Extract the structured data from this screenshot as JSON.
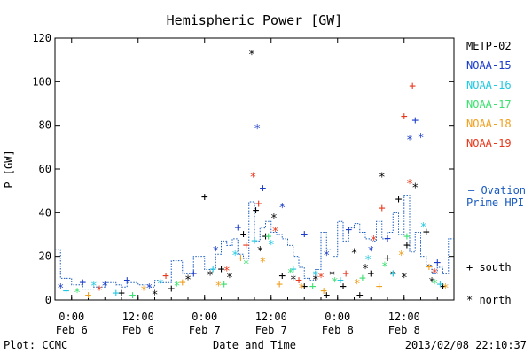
{
  "chart_data": {
    "type": "scatter",
    "title": "Hemispheric Power [GW]",
    "ylabel": "P [GW]",
    "xlabel": "Date and Time",
    "ylim": [
      0,
      120
    ],
    "xlim": [
      "2013-02-05 21:00",
      "2013-02-08 21:00"
    ],
    "grid": false,
    "legend_position": "right",
    "y_ticks": [
      0,
      20,
      40,
      60,
      80,
      100,
      120
    ],
    "y_tick_labels": [
      "0",
      "20",
      "40",
      "60",
      "80",
      "100",
      "120"
    ],
    "x_ticks": [
      {
        "t": "2013-02-06 00:00",
        "line1": "0:00",
        "line2": "Feb 6"
      },
      {
        "t": "2013-02-06 12:00",
        "line1": "12:00",
        "line2": "Feb 6"
      },
      {
        "t": "2013-02-07 00:00",
        "line1": "0:00",
        "line2": "Feb 7"
      },
      {
        "t": "2013-02-07 12:00",
        "line1": "12:00",
        "line2": "Feb 7"
      },
      {
        "t": "2013-02-08 00:00",
        "line1": "0:00",
        "line2": "Feb 8"
      },
      {
        "t": "2013-02-08 12:00",
        "line1": "12:00",
        "line2": "Feb 8"
      }
    ],
    "footer_left": "Plot: CCMC",
    "footer_right": "2013/02/08 22:10:37",
    "ovation_label_1": "— Ovation",
    "ovation_label_2": "Prime HPI",
    "south_label": "+ south",
    "north_label": "* north",
    "satellites": [
      {
        "name": "METP-02",
        "color": "#000000",
        "points": [
          [
            "2013-02-06 09:00",
            3,
            "s"
          ],
          [
            "2013-02-06 15:00",
            2,
            "n"
          ],
          [
            "2013-02-06 18:00",
            5,
            "s"
          ],
          [
            "2013-02-06 21:00",
            9,
            "n"
          ],
          [
            "2013-02-07 00:00",
            47,
            "s"
          ],
          [
            "2013-02-07 01:00",
            11,
            "n"
          ],
          [
            "2013-02-07 03:00",
            14,
            "s"
          ],
          [
            "2013-02-07 04:30",
            10,
            "n"
          ],
          [
            "2013-02-07 07:00",
            30,
            "s"
          ],
          [
            "2013-02-07 08:30",
            112,
            "n"
          ],
          [
            "2013-02-07 09:15",
            41,
            "s"
          ],
          [
            "2013-02-07 10:00",
            22,
            "n"
          ],
          [
            "2013-02-07 11:00",
            29,
            "s"
          ],
          [
            "2013-02-07 12:30",
            37,
            "n"
          ],
          [
            "2013-02-07 14:00",
            11,
            "s"
          ],
          [
            "2013-02-07 16:00",
            9,
            "n"
          ],
          [
            "2013-02-07 18:00",
            6,
            "s"
          ],
          [
            "2013-02-07 20:00",
            9,
            "n"
          ],
          [
            "2013-02-07 22:00",
            2,
            "s"
          ],
          [
            "2013-02-07 23:00",
            11,
            "n"
          ],
          [
            "2013-02-08 01:00",
            6,
            "s"
          ],
          [
            "2013-02-08 03:00",
            21,
            "n"
          ],
          [
            "2013-02-08 04:00",
            2,
            "s"
          ],
          [
            "2013-02-08 05:00",
            14,
            "n"
          ],
          [
            "2013-02-08 06:00",
            12,
            "s"
          ],
          [
            "2013-02-08 08:00",
            56,
            "n"
          ],
          [
            "2013-02-08 09:00",
            19,
            "s"
          ],
          [
            "2013-02-08 10:00",
            11,
            "n"
          ],
          [
            "2013-02-08 11:00",
            46,
            "s"
          ],
          [
            "2013-02-08 12:00",
            10,
            "n"
          ],
          [
            "2013-02-08 12:30",
            25,
            "s"
          ],
          [
            "2013-02-08 14:00",
            51,
            "n"
          ],
          [
            "2013-02-08 16:00",
            31,
            "s"
          ],
          [
            "2013-02-08 17:00",
            8,
            "n"
          ],
          [
            "2013-02-08 19:00",
            6,
            "s"
          ]
        ]
      },
      {
        "name": "NOAA-15",
        "color": "#1a3cc8",
        "points": [
          [
            "2013-02-05 22:00",
            5,
            "n"
          ],
          [
            "2013-02-06 02:00",
            8,
            "s"
          ],
          [
            "2013-02-06 06:00",
            6,
            "n"
          ],
          [
            "2013-02-06 10:00",
            9,
            "s"
          ],
          [
            "2013-02-06 14:00",
            5,
            "n"
          ],
          [
            "2013-02-06 22:00",
            12,
            "s"
          ],
          [
            "2013-02-07 02:00",
            22,
            "n"
          ],
          [
            "2013-02-07 06:00",
            33,
            "s"
          ],
          [
            "2013-02-07 09:30",
            78,
            "n"
          ],
          [
            "2013-02-07 10:30",
            51,
            "s"
          ],
          [
            "2013-02-07 14:00",
            42,
            "n"
          ],
          [
            "2013-02-07 18:00",
            30,
            "s"
          ],
          [
            "2013-02-07 22:00",
            20,
            "n"
          ],
          [
            "2013-02-08 02:00",
            32,
            "s"
          ],
          [
            "2013-02-08 06:00",
            22,
            "n"
          ],
          [
            "2013-02-08 09:00",
            28,
            "s"
          ],
          [
            "2013-02-08 13:00",
            73,
            "n"
          ],
          [
            "2013-02-08 14:00",
            82,
            "s"
          ],
          [
            "2013-02-08 15:00",
            74,
            "n"
          ],
          [
            "2013-02-08 18:00",
            17,
            "s"
          ]
        ]
      },
      {
        "name": "NOAA-16",
        "color": "#22c8e0",
        "points": [
          [
            "2013-02-05 23:00",
            4,
            "s"
          ],
          [
            "2013-02-06 04:00",
            6,
            "n"
          ],
          [
            "2013-02-06 08:00",
            3,
            "s"
          ],
          [
            "2013-02-06 16:00",
            7,
            "n"
          ],
          [
            "2013-02-07 01:30",
            14,
            "s"
          ],
          [
            "2013-02-07 05:30",
            20,
            "n"
          ],
          [
            "2013-02-07 09:00",
            27,
            "s"
          ],
          [
            "2013-02-07 12:00",
            25,
            "n"
          ],
          [
            "2013-02-07 16:00",
            14,
            "s"
          ],
          [
            "2013-02-07 20:00",
            11,
            "n"
          ],
          [
            "2013-02-08 00:30",
            9,
            "s"
          ],
          [
            "2013-02-08 05:30",
            18,
            "n"
          ],
          [
            "2013-02-08 10:00",
            12,
            "s"
          ],
          [
            "2013-02-08 15:30",
            33,
            "n"
          ],
          [
            "2013-02-08 18:30",
            7,
            "s"
          ]
        ]
      },
      {
        "name": "NOAA-17",
        "color": "#3ce070",
        "points": [
          [
            "2013-02-06 01:00",
            3,
            "n"
          ],
          [
            "2013-02-06 11:00",
            2,
            "s"
          ],
          [
            "2013-02-06 19:00",
            6,
            "n"
          ],
          [
            "2013-02-07 03:30",
            7,
            "s"
          ],
          [
            "2013-02-07 07:30",
            16,
            "n"
          ],
          [
            "2013-02-07 11:30",
            29,
            "s"
          ],
          [
            "2013-02-07 15:30",
            12,
            "n"
          ],
          [
            "2013-02-07 19:30",
            6,
            "s"
          ],
          [
            "2013-02-07 23:30",
            8,
            "n"
          ],
          [
            "2013-02-08 04:30",
            10,
            "s"
          ],
          [
            "2013-02-08 08:30",
            15,
            "n"
          ],
          [
            "2013-02-08 12:30",
            29,
            "s"
          ],
          [
            "2013-02-08 17:30",
            7,
            "n"
          ]
        ]
      },
      {
        "name": "NOAA-18",
        "color": "#f0a020",
        "points": [
          [
            "2013-02-06 03:00",
            2,
            "s"
          ],
          [
            "2013-02-06 13:00",
            4,
            "n"
          ],
          [
            "2013-02-06 20:00",
            8,
            "s"
          ],
          [
            "2013-02-07 02:30",
            6,
            "n"
          ],
          [
            "2013-02-07 06:30",
            19,
            "s"
          ],
          [
            "2013-02-07 10:30",
            17,
            "n"
          ],
          [
            "2013-02-07 13:30",
            7,
            "s"
          ],
          [
            "2013-02-07 17:30",
            5,
            "n"
          ],
          [
            "2013-02-07 21:30",
            4,
            "s"
          ],
          [
            "2013-02-08 03:30",
            7,
            "n"
          ],
          [
            "2013-02-08 07:30",
            6,
            "s"
          ],
          [
            "2013-02-08 11:30",
            20,
            "n"
          ],
          [
            "2013-02-08 16:30",
            15,
            "s"
          ],
          [
            "2013-02-08 19:30",
            5,
            "n"
          ]
        ]
      },
      {
        "name": "NOAA-19",
        "color": "#e8381c",
        "points": [
          [
            "2013-02-06 05:00",
            4,
            "n"
          ],
          [
            "2013-02-06 17:00",
            11,
            "s"
          ],
          [
            "2013-02-07 04:00",
            13,
            "n"
          ],
          [
            "2013-02-07 07:30",
            25,
            "s"
          ],
          [
            "2013-02-07 08:45",
            56,
            "n"
          ],
          [
            "2013-02-07 09:45",
            44,
            "s"
          ],
          [
            "2013-02-07 12:45",
            31,
            "n"
          ],
          [
            "2013-02-07 17:00",
            9,
            "s"
          ],
          [
            "2013-02-07 21:00",
            10,
            "n"
          ],
          [
            "2013-02-08 01:30",
            12,
            "s"
          ],
          [
            "2013-02-08 06:30",
            27,
            "n"
          ],
          [
            "2013-02-08 08:00",
            42,
            "s"
          ],
          [
            "2013-02-08 12:00",
            84,
            "s"
          ],
          [
            "2013-02-08 13:00",
            53,
            "n"
          ],
          [
            "2013-02-08 13:30",
            98,
            "s"
          ],
          [
            "2013-02-08 17:30",
            12,
            "n"
          ]
        ]
      }
    ],
    "ovation_hpi": {
      "color": "#1a5cc0",
      "times": [
        "2013-02-05 21:00",
        "2013-02-05 22:00",
        "2013-02-06 00:00",
        "2013-02-06 02:00",
        "2013-02-06 04:00",
        "2013-02-06 06:00",
        "2013-02-06 08:00",
        "2013-02-06 09:00",
        "2013-02-06 10:00",
        "2013-02-06 12:00",
        "2013-02-06 14:00",
        "2013-02-06 15:00",
        "2013-02-06 16:00",
        "2013-02-06 18:00",
        "2013-02-06 20:00",
        "2013-02-06 22:00",
        "2013-02-07 00:00",
        "2013-02-07 02:00",
        "2013-02-07 03:00",
        "2013-02-07 04:00",
        "2013-02-07 05:00",
        "2013-02-07 06:00",
        "2013-02-07 07:00",
        "2013-02-07 08:00",
        "2013-02-07 09:00",
        "2013-02-07 10:00",
        "2013-02-07 11:00",
        "2013-02-07 12:00",
        "2013-02-07 13:00",
        "2013-02-07 14:00",
        "2013-02-07 15:00",
        "2013-02-07 16:00",
        "2013-02-07 17:00",
        "2013-02-07 18:00",
        "2013-02-07 19:00",
        "2013-02-07 20:00",
        "2013-02-07 21:00",
        "2013-02-07 22:00",
        "2013-02-07 23:00",
        "2013-02-08 00:00",
        "2013-02-08 01:00",
        "2013-02-08 02:00",
        "2013-02-08 03:00",
        "2013-02-08 04:00",
        "2013-02-08 05:00",
        "2013-02-08 06:00",
        "2013-02-08 07:00",
        "2013-02-08 08:00",
        "2013-02-08 09:00",
        "2013-02-08 10:00",
        "2013-02-08 11:00",
        "2013-02-08 12:00",
        "2013-02-08 13:00",
        "2013-02-08 14:00",
        "2013-02-08 15:00",
        "2013-02-08 16:00",
        "2013-02-08 17:00",
        "2013-02-08 18:00",
        "2013-02-08 19:00",
        "2013-02-08 20:00",
        "2013-02-08 21:00"
      ],
      "values": [
        23,
        10,
        7,
        5,
        6,
        8,
        7,
        6,
        8,
        7,
        6,
        9,
        8,
        18,
        12,
        20,
        14,
        21,
        27,
        25,
        28,
        21,
        19,
        45,
        27,
        33,
        36,
        31,
        30,
        28,
        25,
        20,
        15,
        10,
        9,
        14,
        31,
        23,
        20,
        36,
        27,
        33,
        35,
        31,
        28,
        27,
        36,
        28,
        31,
        40,
        30,
        48,
        22,
        31,
        20,
        16,
        12,
        15,
        12,
        28,
        28
      ]
    }
  }
}
